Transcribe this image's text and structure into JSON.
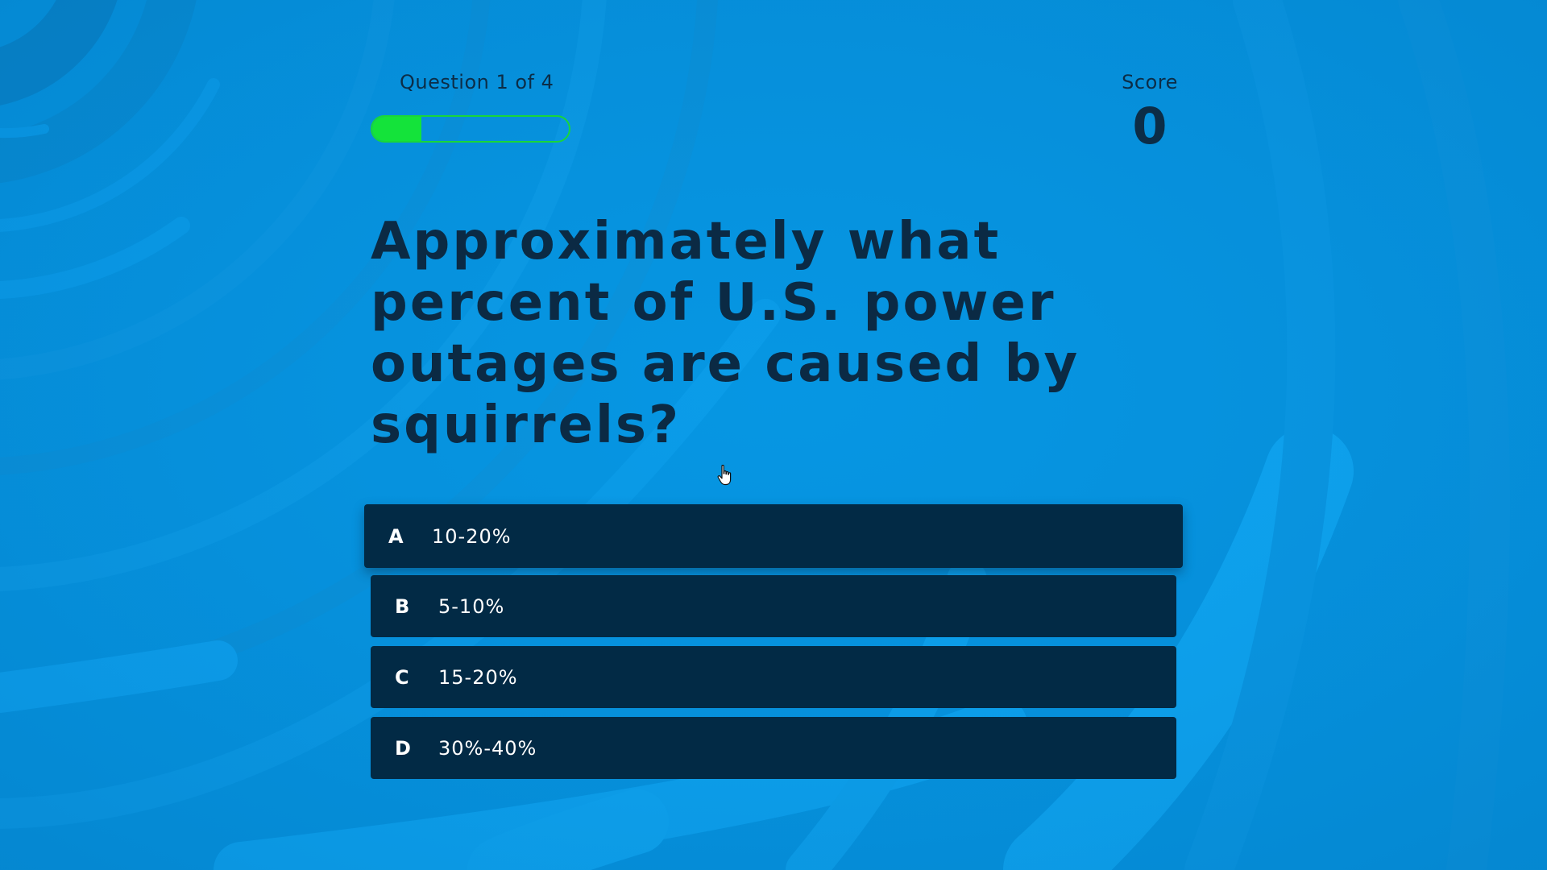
{
  "quiz": {
    "progress_label": "Question 1 of 4",
    "progress_fraction": 0.25,
    "progress_color": "#14e33a",
    "score_label": "Score",
    "score_value": "0",
    "question": "Approximately what percent of U.S. power outages are caused by squirrels?",
    "answers": [
      {
        "letter": "A",
        "text": "10-20%"
      },
      {
        "letter": "B",
        "text": "5-10%"
      },
      {
        "letter": "C",
        "text": "15-20%"
      },
      {
        "letter": "D",
        "text": "30%-40%"
      }
    ],
    "hovered_answer": "A"
  },
  "theme": {
    "background": "#0590dc",
    "answer_background": "#022a45",
    "text_dark": "#0b2a44"
  },
  "icons": {
    "cursor": "hand-pointer-icon"
  }
}
